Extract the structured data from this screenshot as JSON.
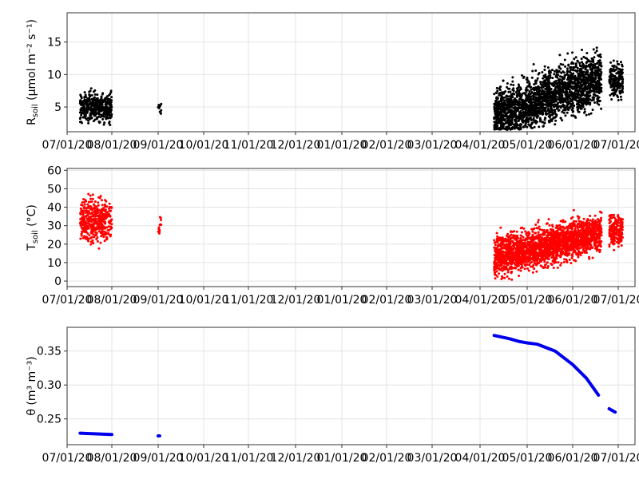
{
  "colors": {
    "black": "#000000",
    "red": "#ff0000",
    "blue": "#0000ee",
    "grid": "#e4e4e4"
  },
  "chart_data": [
    {
      "type": "scatter",
      "title": "",
      "xlabel": "",
      "ylabel": "R",
      "ylabel_sub": "soil",
      "ylabel_units": " (µmol m⁻² s⁻¹)",
      "ylim": [
        1.2,
        19.5
      ],
      "yticks": [
        5,
        10,
        15
      ],
      "grid": true,
      "x_tick_labels": [
        "07/01/20",
        "08/01/20",
        "09/01/20",
        "10/01/20",
        "11/01/20",
        "12/01/20",
        "01/01/20",
        "02/01/20",
        "03/01/20",
        "04/01/20",
        "05/01/20",
        "06/01/20",
        "07/01/20"
      ],
      "series": [
        {
          "color": "#000000",
          "clusters": [
            {
              "x_start": "2020-07-10",
              "x_end": "2020-08-01",
              "y_low": 1.8,
              "y_high": 11.2,
              "y_center": 5.0,
              "density": 420
            },
            {
              "x_start": "2020-09-01",
              "x_end": "2020-09-03",
              "y_low": 3.0,
              "y_high": 6.5,
              "y_center": 4.8,
              "density": 14
            },
            {
              "x_start": "2021-04-10",
              "x_end": "2021-06-20",
              "y_low": 1.5,
              "y_high": 18.8,
              "y_center_start": 3.5,
              "y_center_end": 9.5,
              "density": 2200
            },
            {
              "x_start": "2021-06-25",
              "x_end": "2021-07-04",
              "y_low": 3.5,
              "y_high": 15.0,
              "y_center": 9.2,
              "density": 180
            }
          ]
        }
      ]
    },
    {
      "type": "scatter",
      "title": "",
      "xlabel": "",
      "ylabel": "T",
      "ylabel_sub": "soil",
      "ylabel_units": " (°C)",
      "ylim": [
        -3,
        61
      ],
      "yticks": [
        0,
        10,
        20,
        30,
        40,
        50,
        60
      ],
      "grid": true,
      "x_tick_labels": [
        "07/01/20",
        "08/01/20",
        "09/01/20",
        "10/01/20",
        "11/01/20",
        "12/01/20",
        "01/01/20",
        "02/01/20",
        "03/01/20",
        "04/01/20",
        "05/01/20",
        "06/01/20",
        "07/01/20"
      ],
      "series": [
        {
          "color": "#ff0000",
          "clusters": [
            {
              "x_start": "2020-07-10",
              "x_end": "2020-08-01",
              "y_low": 8,
              "y_high": 58,
              "y_center": 33,
              "density": 420
            },
            {
              "x_start": "2020-09-01",
              "x_end": "2020-09-03",
              "y_low": 18,
              "y_high": 45,
              "y_center": 31,
              "density": 14
            },
            {
              "x_start": "2021-04-10",
              "x_end": "2021-06-20",
              "y_low": -3,
              "y_high": 42,
              "y_center_start": 13,
              "y_center_end": 26,
              "density": 2200
            },
            {
              "x_start": "2021-06-25",
              "x_end": "2021-07-04",
              "y_low": 12,
              "y_high": 46,
              "y_center": 28,
              "density": 180
            }
          ]
        }
      ]
    },
    {
      "type": "line",
      "title": "",
      "xlabel": "",
      "ylabel": "θ (m³ m⁻³)",
      "ylim": [
        0.212,
        0.385
      ],
      "yticks": [
        0.25,
        0.3,
        0.35
      ],
      "ytick_labels": [
        "0.25",
        "0.30",
        "0.35"
      ],
      "grid": true,
      "x_tick_labels": [
        "07/01/20",
        "08/01/20",
        "09/01/20",
        "10/01/20",
        "11/01/20",
        "12/01/20",
        "01/01/20",
        "02/01/20",
        "03/01/20",
        "04/01/20",
        "05/01/20",
        "06/01/20",
        "07/01/20"
      ],
      "series": [
        {
          "color": "#0000ee",
          "segments": [
            {
              "x": [
                "2020-07-10",
                "2020-07-20",
                "2020-08-01"
              ],
              "y": [
                0.229,
                0.228,
                0.227
              ]
            },
            {
              "x": [
                "2020-09-01",
                "2020-09-02"
              ],
              "y": [
                0.225,
                0.225
              ]
            },
            {
              "x": [
                "2021-04-10",
                "2021-04-20",
                "2021-04-26",
                "2021-05-01",
                "2021-05-08",
                "2021-05-20",
                "2021-06-01",
                "2021-06-10",
                "2021-06-18"
              ],
              "y": [
                0.373,
                0.368,
                0.364,
                0.362,
                0.36,
                0.35,
                0.33,
                0.31,
                0.285
              ]
            },
            {
              "x": [
                "2021-06-25",
                "2021-06-29"
              ],
              "y": [
                0.265,
                0.26
              ]
            }
          ]
        }
      ]
    }
  ]
}
